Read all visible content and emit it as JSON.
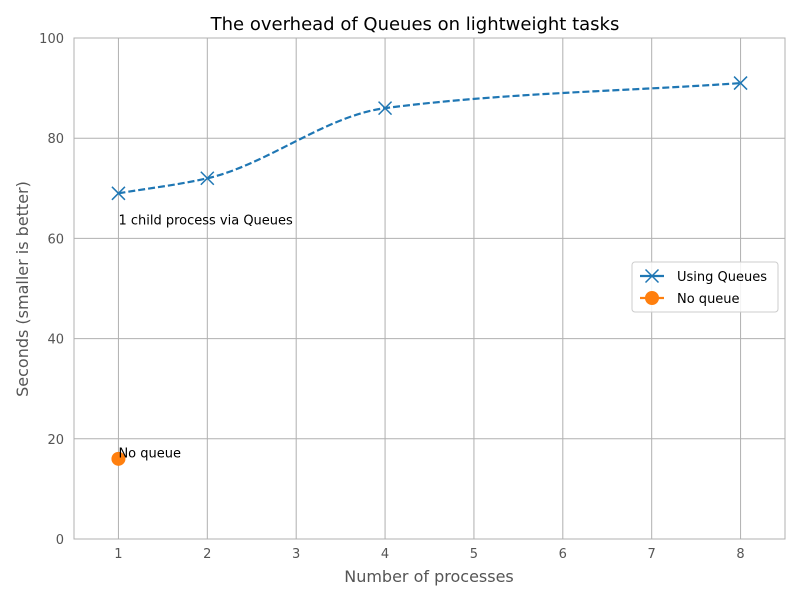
{
  "chart_data": {
    "type": "line",
    "title": "The overhead of Queues on lightweight tasks",
    "xlabel": "Number of processes",
    "ylabel": "Seconds (smaller is better)",
    "xlim": [
      0.5,
      8.5
    ],
    "ylim": [
      0,
      100
    ],
    "xticks": [
      1,
      2,
      3,
      4,
      5,
      6,
      7,
      8
    ],
    "yticks": [
      0,
      20,
      40,
      60,
      80,
      100
    ],
    "grid": true,
    "legend_position": "center-right",
    "series": [
      {
        "name": "Using Queues",
        "x": [
          1,
          2,
          4,
          8
        ],
        "y": [
          69,
          72,
          86,
          91
        ],
        "color": "#1f77b4",
        "marker": "x",
        "linestyle": "dashed",
        "smooth": true
      },
      {
        "name": "No queue",
        "x": [
          1
        ],
        "y": [
          16
        ],
        "color": "#ff7f0e",
        "marker": "circle",
        "linestyle": "solid"
      }
    ],
    "annotations": [
      {
        "text": "1 child process via Queues",
        "x": 1,
        "y": 63
      },
      {
        "text": "No queue",
        "x": 1,
        "y": 16.5
      }
    ]
  }
}
